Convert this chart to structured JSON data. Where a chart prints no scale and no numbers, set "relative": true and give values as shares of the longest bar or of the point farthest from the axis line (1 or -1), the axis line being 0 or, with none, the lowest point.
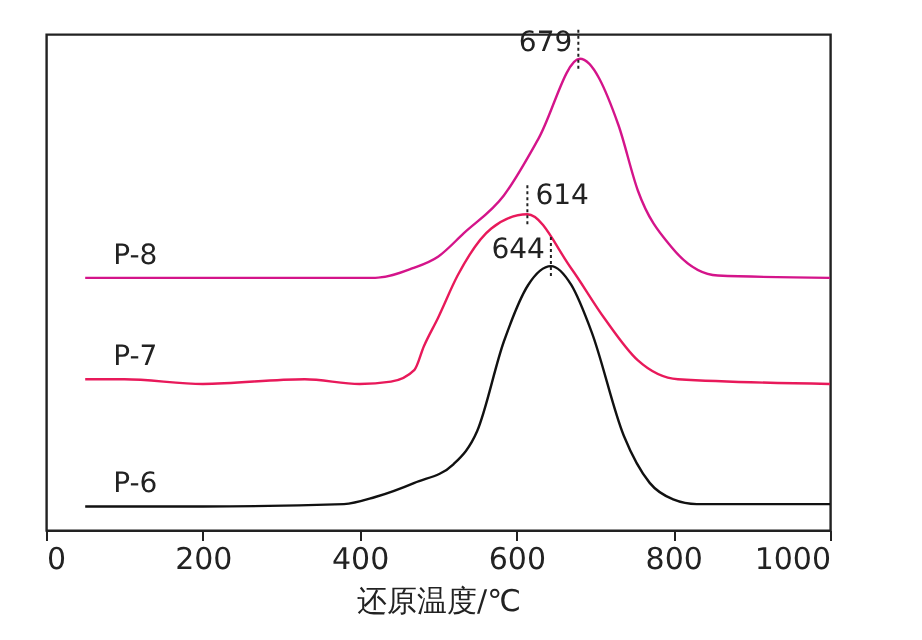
{
  "chart_data": {
    "type": "line",
    "xlabel": "还原温度/℃",
    "relative": true,
    "xlim": [
      0,
      1000
    ],
    "xticks": [
      0,
      200,
      400,
      600,
      800,
      1000
    ],
    "grid": false,
    "legend": false,
    "marker": "none",
    "line_style": "solid",
    "series": [
      {
        "name": "P-6",
        "color": "#111111",
        "x": [
          50,
          200,
          380,
          420,
          470,
          520,
          550,
          584,
          615,
          644,
          670,
          696,
          737,
          770,
          800,
          830,
          1000
        ],
        "values": [
          0.05,
          0.05,
          0.055,
          0.07,
          0.1,
          0.14,
          0.21,
          0.4,
          0.52,
          0.56,
          0.52,
          0.42,
          0.2,
          0.1,
          0.065,
          0.055,
          0.055
        ]
      },
      {
        "name": "P-7",
        "color": "#e8195a",
        "x": [
          50,
          100,
          200,
          330,
          400,
          440,
          470,
          482,
          500,
          525,
          568,
          614,
          670,
          712,
          755,
          806,
          1000
        ],
        "values": [
          0.32,
          0.32,
          0.31,
          0.32,
          0.31,
          0.315,
          0.34,
          0.39,
          0.45,
          0.54,
          0.64,
          0.67,
          0.555,
          0.45,
          0.36,
          0.32,
          0.31
        ]
      },
      {
        "name": "P-8",
        "color": "#d4148a",
        "x": [
          50,
          200,
          420,
          467,
          500,
          533,
          584,
          628,
          681,
          730,
          755,
          798,
          857,
          1000
        ],
        "values": [
          0.535,
          0.535,
          0.535,
          0.555,
          0.58,
          0.63,
          0.71,
          0.83,
          1.0,
          0.86,
          0.72,
          0.6,
          0.54,
          0.535
        ]
      }
    ],
    "annotations": [
      {
        "text": "679",
        "x": 679,
        "y": 1.0
      },
      {
        "text": "614",
        "x": 614,
        "y": 0.67
      },
      {
        "text": "644",
        "x": 644,
        "y": 0.56
      }
    ]
  }
}
